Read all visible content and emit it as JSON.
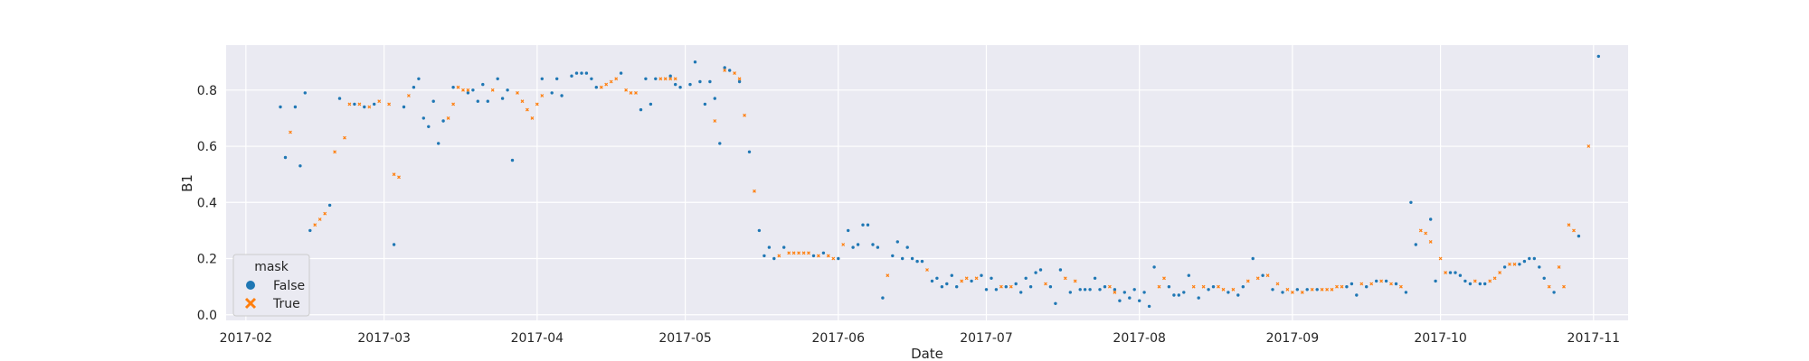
{
  "chart_data": {
    "type": "scatter",
    "xlabel": "Date",
    "ylabel": "B1",
    "xlim": [
      "2017-01-28",
      "2017-11-08"
    ],
    "ylim": [
      -0.02,
      0.96
    ],
    "x_ticks": [
      "2017-02-01",
      "2017-03-01",
      "2017-04-01",
      "2017-05-01",
      "2017-06-01",
      "2017-07-01",
      "2017-08-01",
      "2017-09-01",
      "2017-10-01",
      "2017-11-01"
    ],
    "x_tick_labels": [
      "2017-02",
      "2017-03",
      "2017-04",
      "2017-05",
      "2017-06",
      "2017-07",
      "2017-08",
      "2017-09",
      "2017-10",
      "2017-11"
    ],
    "y_ticks": [
      0.0,
      0.2,
      0.4,
      0.6,
      0.8
    ],
    "y_tick_labels": [
      "0.0",
      "0.2",
      "0.4",
      "0.6",
      "0.8"
    ],
    "grid": true,
    "legend": {
      "title": "mask",
      "placement": "lower-left",
      "entries": [
        {
          "label": "False",
          "marker": "circle",
          "color": "#1f77b4"
        },
        {
          "label": "True",
          "marker": "x",
          "color": "#ff7f0e"
        }
      ]
    },
    "colors": {
      "false": "#1f77b4",
      "true": "#ff7f0e",
      "plot_bg": "#eaeaf2",
      "grid": "#ffffff"
    },
    "series": [
      {
        "name": "False",
        "points": [
          [
            "2017-02-08",
            0.74
          ],
          [
            "2017-02-09",
            0.56
          ],
          [
            "2017-02-11",
            0.74
          ],
          [
            "2017-02-12",
            0.53
          ],
          [
            "2017-02-13",
            0.79
          ],
          [
            "2017-02-14",
            0.3
          ],
          [
            "2017-02-18",
            0.39
          ],
          [
            "2017-02-20",
            0.77
          ],
          [
            "2017-02-23",
            0.75
          ],
          [
            "2017-02-25",
            0.74
          ],
          [
            "2017-02-27",
            0.75
          ],
          [
            "2017-03-03",
            0.25
          ],
          [
            "2017-03-05",
            0.74
          ],
          [
            "2017-03-07",
            0.81
          ],
          [
            "2017-03-08",
            0.84
          ],
          [
            "2017-03-09",
            0.7
          ],
          [
            "2017-03-10",
            0.67
          ],
          [
            "2017-03-11",
            0.76
          ],
          [
            "2017-03-12",
            0.61
          ],
          [
            "2017-03-13",
            0.69
          ],
          [
            "2017-03-15",
            0.81
          ],
          [
            "2017-03-18",
            0.79
          ],
          [
            "2017-03-19",
            0.8
          ],
          [
            "2017-03-20",
            0.76
          ],
          [
            "2017-03-21",
            0.82
          ],
          [
            "2017-03-22",
            0.76
          ],
          [
            "2017-03-24",
            0.84
          ],
          [
            "2017-03-25",
            0.77
          ],
          [
            "2017-03-26",
            0.8
          ],
          [
            "2017-03-27",
            0.55
          ],
          [
            "2017-04-02",
            0.84
          ],
          [
            "2017-04-04",
            0.79
          ],
          [
            "2017-04-05",
            0.84
          ],
          [
            "2017-04-06",
            0.78
          ],
          [
            "2017-04-08",
            0.85
          ],
          [
            "2017-04-09",
            0.86
          ],
          [
            "2017-04-10",
            0.86
          ],
          [
            "2017-04-11",
            0.86
          ],
          [
            "2017-04-12",
            0.84
          ],
          [
            "2017-04-13",
            0.81
          ],
          [
            "2017-04-18",
            0.86
          ],
          [
            "2017-04-22",
            0.73
          ],
          [
            "2017-04-23",
            0.84
          ],
          [
            "2017-04-24",
            0.75
          ],
          [
            "2017-04-25",
            0.84
          ],
          [
            "2017-04-28",
            0.85
          ],
          [
            "2017-04-29",
            0.82
          ],
          [
            "2017-04-30",
            0.81
          ],
          [
            "2017-05-02",
            0.82
          ],
          [
            "2017-05-03",
            0.9
          ],
          [
            "2017-05-04",
            0.83
          ],
          [
            "2017-05-05",
            0.75
          ],
          [
            "2017-05-06",
            0.83
          ],
          [
            "2017-05-07",
            0.77
          ],
          [
            "2017-05-08",
            0.61
          ],
          [
            "2017-05-09",
            0.88
          ],
          [
            "2017-05-10",
            0.87
          ],
          [
            "2017-05-12",
            0.83
          ],
          [
            "2017-05-14",
            0.58
          ],
          [
            "2017-05-16",
            0.3
          ],
          [
            "2017-05-17",
            0.21
          ],
          [
            "2017-05-18",
            0.24
          ],
          [
            "2017-05-19",
            0.2
          ],
          [
            "2017-05-21",
            0.24
          ],
          [
            "2017-05-27",
            0.21
          ],
          [
            "2017-05-29",
            0.22
          ],
          [
            "2017-06-01",
            0.2
          ],
          [
            "2017-06-03",
            0.3
          ],
          [
            "2017-06-04",
            0.24
          ],
          [
            "2017-06-05",
            0.25
          ],
          [
            "2017-06-06",
            0.32
          ],
          [
            "2017-06-07",
            0.32
          ],
          [
            "2017-06-08",
            0.25
          ],
          [
            "2017-06-09",
            0.24
          ],
          [
            "2017-06-10",
            0.06
          ],
          [
            "2017-06-12",
            0.21
          ],
          [
            "2017-06-13",
            0.26
          ],
          [
            "2017-06-14",
            0.2
          ],
          [
            "2017-06-15",
            0.24
          ],
          [
            "2017-06-16",
            0.2
          ],
          [
            "2017-06-17",
            0.19
          ],
          [
            "2017-06-18",
            0.19
          ],
          [
            "2017-06-20",
            0.12
          ],
          [
            "2017-06-21",
            0.13
          ],
          [
            "2017-06-22",
            0.1
          ],
          [
            "2017-06-23",
            0.11
          ],
          [
            "2017-06-24",
            0.14
          ],
          [
            "2017-06-25",
            0.1
          ],
          [
            "2017-06-28",
            0.12
          ],
          [
            "2017-06-30",
            0.14
          ],
          [
            "2017-07-01",
            0.09
          ],
          [
            "2017-07-02",
            0.13
          ],
          [
            "2017-07-03",
            0.09
          ],
          [
            "2017-07-05",
            0.1
          ],
          [
            "2017-07-07",
            0.11
          ],
          [
            "2017-07-08",
            0.08
          ],
          [
            "2017-07-09",
            0.13
          ],
          [
            "2017-07-10",
            0.1
          ],
          [
            "2017-07-11",
            0.15
          ],
          [
            "2017-07-12",
            0.16
          ],
          [
            "2017-07-14",
            0.1
          ],
          [
            "2017-07-15",
            0.04
          ],
          [
            "2017-07-16",
            0.16
          ],
          [
            "2017-07-18",
            0.08
          ],
          [
            "2017-07-20",
            0.09
          ],
          [
            "2017-07-21",
            0.09
          ],
          [
            "2017-07-22",
            0.09
          ],
          [
            "2017-07-23",
            0.13
          ],
          [
            "2017-07-24",
            0.09
          ],
          [
            "2017-07-25",
            0.1
          ],
          [
            "2017-07-27",
            0.09
          ],
          [
            "2017-07-28",
            0.05
          ],
          [
            "2017-07-29",
            0.08
          ],
          [
            "2017-07-30",
            0.06
          ],
          [
            "2017-07-31",
            0.09
          ],
          [
            "2017-08-01",
            0.05
          ],
          [
            "2017-08-02",
            0.08
          ],
          [
            "2017-08-03",
            0.03
          ],
          [
            "2017-08-04",
            0.17
          ],
          [
            "2017-08-07",
            0.1
          ],
          [
            "2017-08-08",
            0.07
          ],
          [
            "2017-08-09",
            0.07
          ],
          [
            "2017-08-10",
            0.08
          ],
          [
            "2017-08-11",
            0.14
          ],
          [
            "2017-08-13",
            0.06
          ],
          [
            "2017-08-15",
            0.09
          ],
          [
            "2017-08-16",
            0.1
          ],
          [
            "2017-08-19",
            0.08
          ],
          [
            "2017-08-21",
            0.07
          ],
          [
            "2017-08-22",
            0.1
          ],
          [
            "2017-08-24",
            0.2
          ],
          [
            "2017-08-26",
            0.14
          ],
          [
            "2017-08-28",
            0.09
          ],
          [
            "2017-08-30",
            0.08
          ],
          [
            "2017-09-02",
            0.09
          ],
          [
            "2017-09-04",
            0.09
          ],
          [
            "2017-09-06",
            0.09
          ],
          [
            "2017-09-12",
            0.1
          ],
          [
            "2017-09-13",
            0.11
          ],
          [
            "2017-09-14",
            0.07
          ],
          [
            "2017-09-16",
            0.1
          ],
          [
            "2017-09-18",
            0.12
          ],
          [
            "2017-09-20",
            0.12
          ],
          [
            "2017-09-22",
            0.11
          ],
          [
            "2017-09-24",
            0.08
          ],
          [
            "2017-09-25",
            0.4
          ],
          [
            "2017-09-26",
            0.25
          ],
          [
            "2017-09-29",
            0.34
          ],
          [
            "2017-09-30",
            0.12
          ],
          [
            "2017-10-03",
            0.15
          ],
          [
            "2017-10-04",
            0.15
          ],
          [
            "2017-10-05",
            0.14
          ],
          [
            "2017-10-06",
            0.12
          ],
          [
            "2017-10-07",
            0.11
          ],
          [
            "2017-10-09",
            0.11
          ],
          [
            "2017-10-10",
            0.11
          ],
          [
            "2017-10-14",
            0.17
          ],
          [
            "2017-10-17",
            0.18
          ],
          [
            "2017-10-18",
            0.19
          ],
          [
            "2017-10-19",
            0.2
          ],
          [
            "2017-10-20",
            0.2
          ],
          [
            "2017-10-21",
            0.17
          ],
          [
            "2017-10-22",
            0.13
          ],
          [
            "2017-10-24",
            0.08
          ],
          [
            "2017-10-29",
            0.28
          ],
          [
            "2017-11-02",
            0.92
          ]
        ]
      },
      {
        "name": "True",
        "points": [
          [
            "2017-02-10",
            0.65
          ],
          [
            "2017-02-15",
            0.32
          ],
          [
            "2017-02-16",
            0.34
          ],
          [
            "2017-02-17",
            0.36
          ],
          [
            "2017-02-19",
            0.58
          ],
          [
            "2017-02-21",
            0.63
          ],
          [
            "2017-02-22",
            0.75
          ],
          [
            "2017-02-24",
            0.75
          ],
          [
            "2017-02-26",
            0.74
          ],
          [
            "2017-02-28",
            0.76
          ],
          [
            "2017-03-02",
            0.75
          ],
          [
            "2017-03-03",
            0.5
          ],
          [
            "2017-03-04",
            0.49
          ],
          [
            "2017-03-06",
            0.78
          ],
          [
            "2017-03-14",
            0.7
          ],
          [
            "2017-03-15",
            0.75
          ],
          [
            "2017-03-16",
            0.81
          ],
          [
            "2017-03-17",
            0.8
          ],
          [
            "2017-03-18",
            0.8
          ],
          [
            "2017-03-23",
            0.8
          ],
          [
            "2017-03-28",
            0.79
          ],
          [
            "2017-03-29",
            0.76
          ],
          [
            "2017-03-30",
            0.73
          ],
          [
            "2017-03-31",
            0.7
          ],
          [
            "2017-04-01",
            0.75
          ],
          [
            "2017-04-02",
            0.78
          ],
          [
            "2017-04-14",
            0.81
          ],
          [
            "2017-04-15",
            0.82
          ],
          [
            "2017-04-16",
            0.83
          ],
          [
            "2017-04-17",
            0.84
          ],
          [
            "2017-04-19",
            0.8
          ],
          [
            "2017-04-20",
            0.79
          ],
          [
            "2017-04-21",
            0.79
          ],
          [
            "2017-04-26",
            0.84
          ],
          [
            "2017-04-27",
            0.84
          ],
          [
            "2017-04-28",
            0.84
          ],
          [
            "2017-04-29",
            0.84
          ],
          [
            "2017-05-07",
            0.69
          ],
          [
            "2017-05-09",
            0.87
          ],
          [
            "2017-05-11",
            0.86
          ],
          [
            "2017-05-12",
            0.84
          ],
          [
            "2017-05-13",
            0.71
          ],
          [
            "2017-05-15",
            0.44
          ],
          [
            "2017-05-20",
            0.21
          ],
          [
            "2017-05-22",
            0.22
          ],
          [
            "2017-05-23",
            0.22
          ],
          [
            "2017-05-24",
            0.22
          ],
          [
            "2017-05-25",
            0.22
          ],
          [
            "2017-05-26",
            0.22
          ],
          [
            "2017-05-28",
            0.21
          ],
          [
            "2017-05-30",
            0.21
          ],
          [
            "2017-05-31",
            0.2
          ],
          [
            "2017-06-02",
            0.25
          ],
          [
            "2017-06-11",
            0.14
          ],
          [
            "2017-06-19",
            0.16
          ],
          [
            "2017-06-26",
            0.12
          ],
          [
            "2017-06-27",
            0.13
          ],
          [
            "2017-06-29",
            0.13
          ],
          [
            "2017-07-04",
            0.1
          ],
          [
            "2017-07-06",
            0.1
          ],
          [
            "2017-07-13",
            0.11
          ],
          [
            "2017-07-17",
            0.13
          ],
          [
            "2017-07-19",
            0.12
          ],
          [
            "2017-07-26",
            0.1
          ],
          [
            "2017-07-27",
            0.08
          ],
          [
            "2017-08-05",
            0.1
          ],
          [
            "2017-08-06",
            0.13
          ],
          [
            "2017-08-12",
            0.1
          ],
          [
            "2017-08-14",
            0.1
          ],
          [
            "2017-08-17",
            0.1
          ],
          [
            "2017-08-18",
            0.09
          ],
          [
            "2017-08-20",
            0.09
          ],
          [
            "2017-08-23",
            0.12
          ],
          [
            "2017-08-25",
            0.13
          ],
          [
            "2017-08-27",
            0.14
          ],
          [
            "2017-08-29",
            0.11
          ],
          [
            "2017-08-31",
            0.09
          ],
          [
            "2017-09-01",
            0.08
          ],
          [
            "2017-09-03",
            0.08
          ],
          [
            "2017-09-05",
            0.09
          ],
          [
            "2017-09-07",
            0.09
          ],
          [
            "2017-09-08",
            0.09
          ],
          [
            "2017-09-09",
            0.09
          ],
          [
            "2017-09-10",
            0.1
          ],
          [
            "2017-09-11",
            0.1
          ],
          [
            "2017-09-15",
            0.11
          ],
          [
            "2017-09-17",
            0.11
          ],
          [
            "2017-09-19",
            0.12
          ],
          [
            "2017-09-21",
            0.11
          ],
          [
            "2017-09-23",
            0.1
          ],
          [
            "2017-09-27",
            0.3
          ],
          [
            "2017-09-28",
            0.29
          ],
          [
            "2017-09-29",
            0.26
          ],
          [
            "2017-10-01",
            0.2
          ],
          [
            "2017-10-02",
            0.15
          ],
          [
            "2017-10-08",
            0.12
          ],
          [
            "2017-10-11",
            0.12
          ],
          [
            "2017-10-12",
            0.13
          ],
          [
            "2017-10-13",
            0.15
          ],
          [
            "2017-10-15",
            0.18
          ],
          [
            "2017-10-16",
            0.18
          ],
          [
            "2017-10-23",
            0.1
          ],
          [
            "2017-10-25",
            0.17
          ],
          [
            "2017-10-26",
            0.1
          ],
          [
            "2017-10-27",
            0.32
          ],
          [
            "2017-10-28",
            0.3
          ],
          [
            "2017-10-31",
            0.6
          ]
        ]
      }
    ]
  }
}
